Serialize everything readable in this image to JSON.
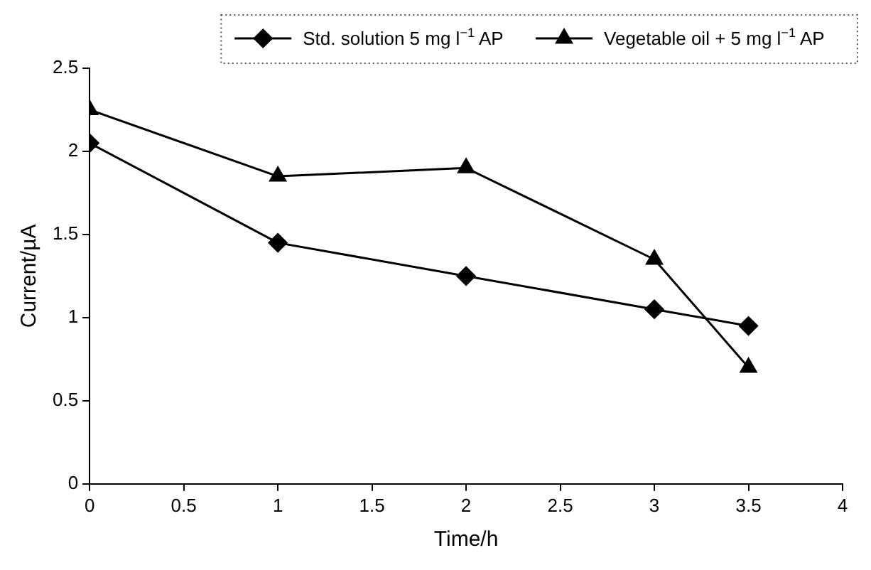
{
  "chart_data": {
    "type": "line",
    "xlabel": "Time/h",
    "ylabel": "Current/µA",
    "x": [
      0,
      1,
      2,
      3,
      3.5
    ],
    "series": [
      {
        "name": "Std. solution 5 mg l$^{−1}$ AP",
        "color": "#000000",
        "marker": "diamond",
        "values": [
          2.05,
          1.45,
          1.25,
          1.05,
          0.95
        ]
      },
      {
        "name": "Vegetable oil + 5 mg l$^{−1}$ AP",
        "color": "#000000",
        "marker": "triangle",
        "values": [
          2.25,
          1.85,
          1.9,
          1.35,
          0.7
        ]
      }
    ],
    "xlim": [
      0,
      4
    ],
    "xticks": [
      0,
      0.5,
      1,
      1.5,
      2,
      2.5,
      3,
      3.5,
      4
    ],
    "ylim": [
      0,
      2.5
    ],
    "yticks": [
      0,
      0.5,
      1,
      1.5,
      2,
      2.5
    ],
    "grid": false,
    "legend": "top right",
    "line_style": "solid"
  }
}
